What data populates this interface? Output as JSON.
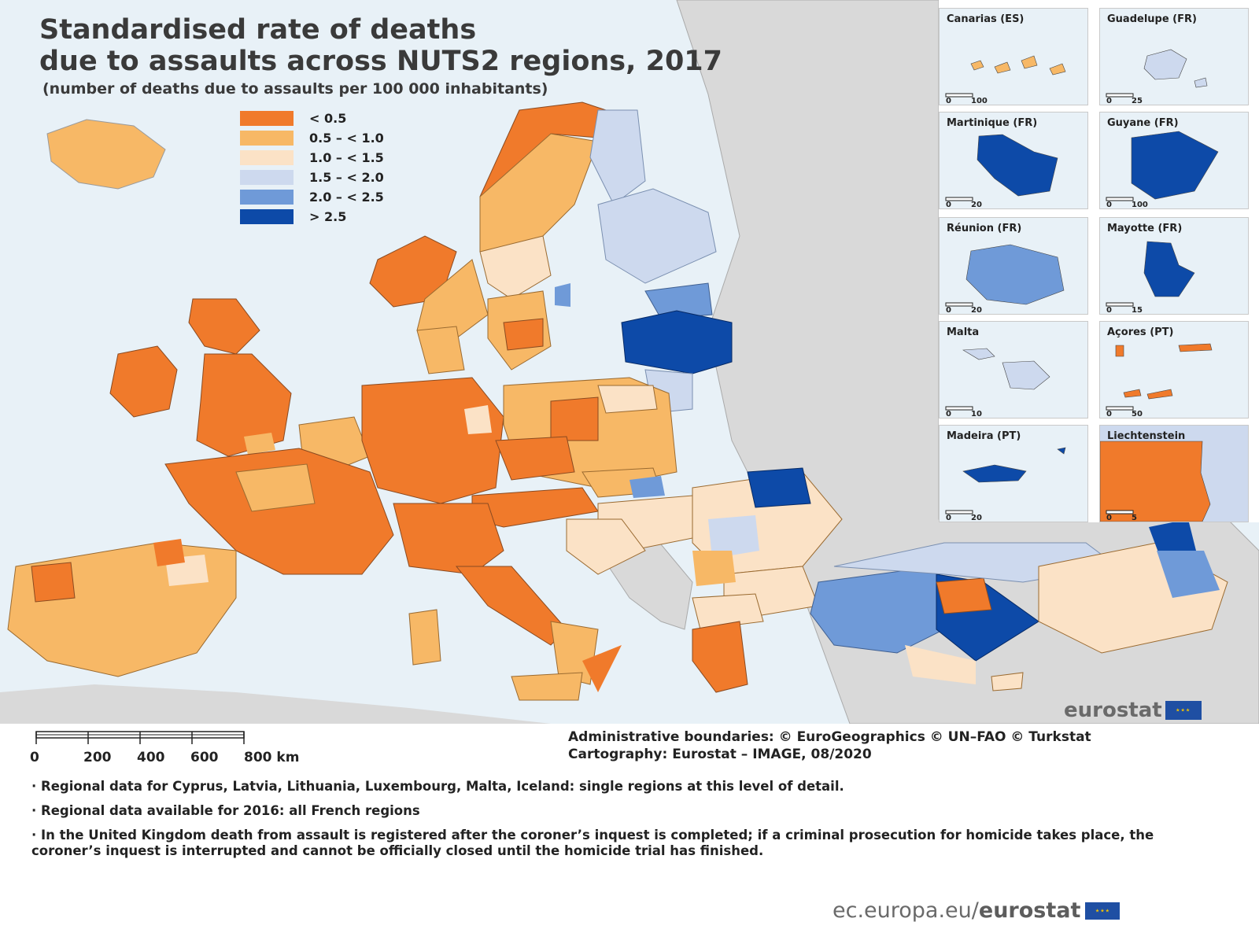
{
  "map": {
    "title_line1": "Standardised rate of deaths",
    "title_line2": "due to assaults across NUTS2 regions, 2017",
    "subtitle": "(number of deaths due to assaults per 100 000 inhabitants)",
    "legend": [
      {
        "label": "< 0.5",
        "color": "#f07a2b"
      },
      {
        "label": "0.5 – < 1.0",
        "color": "#f7b866"
      },
      {
        "label": "1.0 – < 1.5",
        "color": "#fbe2c6"
      },
      {
        "label": "1.5 – < 2.0",
        "color": "#cdd9ee"
      },
      {
        "label": "2.0 – < 2.5",
        "color": "#6f9ad8"
      },
      {
        "label": "> 2.5",
        "color": "#0d4aa8"
      }
    ],
    "no_data_color": "#d9d9d9",
    "sea_color": "#e8f1f7"
  },
  "insets": [
    {
      "name": "Canarias (ES)",
      "scale": [
        "0",
        "100"
      ],
      "color": "#f7b866"
    },
    {
      "name": "Guadelupe (FR)",
      "scale": [
        "0",
        "25"
      ],
      "color": "#cdd9ee"
    },
    {
      "name": "Martinique (FR)",
      "scale": [
        "0",
        "20"
      ],
      "color": "#0d4aa8"
    },
    {
      "name": "Guyane (FR)",
      "scale": [
        "0",
        "100"
      ],
      "color": "#0d4aa8"
    },
    {
      "name": "Réunion (FR)",
      "scale": [
        "0",
        "20"
      ],
      "color": "#6f9ad8"
    },
    {
      "name": "Mayotte (FR)",
      "scale": [
        "0",
        "15"
      ],
      "color": "#0d4aa8"
    },
    {
      "name": "Malta",
      "scale": [
        "0",
        "10"
      ],
      "color": "#cdd9ee"
    },
    {
      "name": "Açores (PT)",
      "scale": [
        "0",
        "50"
      ],
      "color": "#f07a2b"
    },
    {
      "name": "Madeira (PT)",
      "scale": [
        "0",
        "20"
      ],
      "color": "#0d4aa8"
    },
    {
      "name": "Liechtenstein",
      "scale": [
        "0",
        "5"
      ],
      "color": "#f07a2b"
    }
  ],
  "eurostat_badge": "eurostat",
  "scalebar": {
    "labels": [
      "0",
      "200",
      "400",
      "600",
      "800 km"
    ]
  },
  "credits": {
    "line1": "Administrative boundaries: © EuroGeographics © UN–FAO © Turkstat",
    "line2": "Cartography: Eurostat – IMAGE, 08/2020"
  },
  "notes": [
    "· Regional data for Cyprus, Latvia, Lithuania, Luxembourg, Malta, Iceland: single regions at this level of detail.",
    "· Regional data available for 2016: all French regions",
    "· In the United Kingdom death from assault is registered after the coroner’s inquest is completed; if a criminal prosecution for homicide takes place, the coroner’s inquest is interrupted and cannot be officially closed until the homicide trial has finished."
  ],
  "footer": {
    "plain": "ec.europa.eu/",
    "bold": "eurostat"
  }
}
